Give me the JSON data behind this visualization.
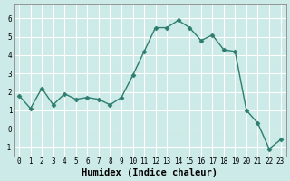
{
  "x": [
    0,
    1,
    2,
    3,
    4,
    5,
    6,
    7,
    8,
    9,
    10,
    11,
    12,
    13,
    14,
    15,
    16,
    17,
    18,
    19,
    20,
    21,
    22,
    23
  ],
  "y": [
    1.8,
    1.1,
    2.2,
    1.3,
    1.9,
    1.6,
    1.7,
    1.6,
    1.3,
    1.7,
    2.9,
    4.2,
    5.5,
    5.5,
    5.9,
    5.5,
    4.8,
    5.1,
    4.3,
    4.2,
    1.0,
    0.3,
    -1.1,
    -0.6
  ],
  "xlabel": "Humidex (Indice chaleur)",
  "ylim": [
    -1.5,
    6.8
  ],
  "xlim": [
    -0.5,
    23.5
  ],
  "line_color": "#2e7d6e",
  "marker": "D",
  "marker_size": 2.5,
  "bg_color": "#cceae7",
  "grid_color": "#ffffff",
  "yticks": [
    -1,
    0,
    1,
    2,
    3,
    4,
    5,
    6
  ],
  "xticks": [
    0,
    1,
    2,
    3,
    4,
    5,
    6,
    7,
    8,
    9,
    10,
    11,
    12,
    13,
    14,
    15,
    16,
    17,
    18,
    19,
    20,
    21,
    22,
    23
  ],
  "tick_fontsize": 5.5,
  "xlabel_fontsize": 7.5
}
